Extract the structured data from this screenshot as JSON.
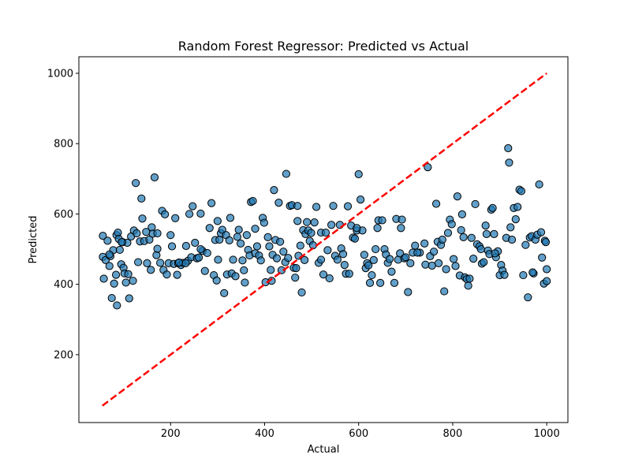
{
  "chart_data": {
    "type": "scatter",
    "title": "Random Forest Regressor: Predicted vs Actual",
    "xlabel": "Actual",
    "ylabel": "Predicted",
    "xlim": [
      5,
      1045
    ],
    "ylim": [
      7,
      1047
    ],
    "x_ticks": [
      200,
      400,
      600,
      800,
      1000
    ],
    "y_ticks": [
      200,
      400,
      600,
      800,
      1000
    ],
    "grid": false,
    "legend": "none",
    "marker_color": "#1f77b4",
    "marker_edge_color": "#000000",
    "marker_alpha": 0.7,
    "reference_line": {
      "x": [
        55,
        1000
      ],
      "y": [
        55,
        1000
      ],
      "color": "#ff0000",
      "style": "dashed"
    },
    "points": [
      [
        56,
        538
      ],
      [
        56,
        478
      ],
      [
        58,
        416
      ],
      [
        62,
        469
      ],
      [
        66,
        524
      ],
      [
        70,
        452
      ],
      [
        72,
        480
      ],
      [
        75,
        361
      ],
      [
        78,
        497
      ],
      [
        80,
        402
      ],
      [
        85,
        540
      ],
      [
        88,
        547
      ],
      [
        90,
        529
      ],
      [
        92,
        498
      ],
      [
        95,
        457
      ],
      [
        98,
        520
      ],
      [
        100,
        447
      ],
      [
        102,
        431
      ],
      [
        105,
        405
      ],
      [
        108,
        518
      ],
      [
        112,
        360
      ],
      [
        116,
        536
      ],
      [
        122,
        553
      ],
      [
        126,
        688
      ],
      [
        128,
        545
      ],
      [
        131,
        463
      ],
      [
        135,
        522
      ],
      [
        138,
        644
      ],
      [
        140,
        587
      ],
      [
        144,
        523
      ],
      [
        150,
        460
      ],
      [
        155,
        527
      ],
      [
        158,
        441
      ],
      [
        160,
        562
      ],
      [
        162,
        544
      ],
      [
        166,
        704
      ],
      [
        170,
        483
      ],
      [
        172,
        501
      ],
      [
        178,
        461
      ],
      [
        182,
        609
      ],
      [
        185,
        441
      ],
      [
        188,
        599
      ],
      [
        192,
        428
      ],
      [
        196,
        460
      ],
      [
        200,
        540
      ],
      [
        203,
        508
      ],
      [
        207,
        458
      ],
      [
        210,
        588
      ],
      [
        214,
        427
      ],
      [
        216,
        460
      ],
      [
        222,
        455
      ],
      [
        226,
        461
      ],
      [
        233,
        509
      ],
      [
        237,
        467
      ],
      [
        240,
        600
      ],
      [
        244,
        477
      ],
      [
        247,
        622
      ],
      [
        252,
        518
      ],
      [
        256,
        474
      ],
      [
        260,
        476
      ],
      [
        264,
        601
      ],
      [
        268,
        495
      ],
      [
        273,
        438
      ],
      [
        278,
        489
      ],
      [
        283,
        560
      ],
      [
        287,
        631
      ],
      [
        292,
        426
      ],
      [
        295,
        526
      ],
      [
        298,
        411
      ],
      [
        301,
        470
      ],
      [
        304,
        527
      ],
      [
        307,
        545
      ],
      [
        310,
        555
      ],
      [
        314,
        375
      ],
      [
        318,
        540
      ],
      [
        320,
        428
      ],
      [
        325,
        525
      ],
      [
        327,
        589
      ],
      [
        330,
        431
      ],
      [
        333,
        470
      ],
      [
        338,
        423
      ],
      [
        342,
        535
      ],
      [
        349,
        516
      ],
      [
        353,
        468
      ],
      [
        356,
        440
      ],
      [
        358,
        405
      ],
      [
        362,
        540
      ],
      [
        365,
        498
      ],
      [
        368,
        482
      ],
      [
        371,
        634
      ],
      [
        375,
        637
      ],
      [
        380,
        488
      ],
      [
        384,
        508
      ],
      [
        388,
        482
      ],
      [
        392,
        468
      ],
      [
        396,
        589
      ],
      [
        399,
        575
      ],
      [
        402,
        406
      ],
      [
        407,
        534
      ],
      [
        410,
        508
      ],
      [
        413,
        441
      ],
      [
        417,
        484
      ],
      [
        420,
        668
      ],
      [
        423,
        526
      ],
      [
        426,
        474
      ],
      [
        430,
        632
      ],
      [
        433,
        521
      ],
      [
        436,
        440
      ],
      [
        440,
        493
      ],
      [
        444,
        463
      ],
      [
        446,
        714
      ],
      [
        450,
        475
      ],
      [
        454,
        623
      ],
      [
        458,
        625
      ],
      [
        462,
        447
      ],
      [
        465,
        419
      ],
      [
        467,
        446
      ],
      [
        470,
        623
      ],
      [
        472,
        481
      ],
      [
        476,
        510
      ],
      [
        479,
        377
      ],
      [
        482,
        554
      ],
      [
        485,
        469
      ],
      [
        487,
        543
      ],
      [
        490,
        577
      ],
      [
        493,
        553
      ],
      [
        496,
        523
      ],
      [
        499,
        546
      ],
      [
        503,
        511
      ],
      [
        506,
        576
      ],
      [
        510,
        620
      ],
      [
        515,
        461
      ],
      [
        520,
        547
      ],
      [
        525,
        428
      ],
      [
        530,
        547
      ],
      [
        534,
        497
      ],
      [
        538,
        417
      ],
      [
        542,
        569
      ],
      [
        546,
        623
      ],
      [
        550,
        481
      ],
      [
        555,
        470
      ],
      [
        560,
        569
      ],
      [
        563,
        502
      ],
      [
        567,
        486
      ],
      [
        570,
        455
      ],
      [
        573,
        430
      ],
      [
        577,
        622
      ],
      [
        580,
        430
      ],
      [
        584,
        567
      ],
      [
        588,
        533
      ],
      [
        592,
        530
      ],
      [
        596,
        553
      ],
      [
        600,
        713
      ],
      [
        604,
        641
      ],
      [
        608,
        553
      ],
      [
        612,
        484
      ],
      [
        615,
        446
      ],
      [
        618,
        460
      ],
      [
        621,
        454
      ],
      [
        624,
        404
      ],
      [
        628,
        426
      ],
      [
        632,
        469
      ],
      [
        636,
        500
      ],
      [
        642,
        582
      ],
      [
        646,
        404
      ],
      [
        650,
        582
      ],
      [
        655,
        500
      ],
      [
        658,
        485
      ],
      [
        662,
        461
      ],
      [
        666,
        472
      ],
      [
        670,
        436
      ],
      [
        676,
        404
      ],
      [
        680,
        586
      ],
      [
        684,
        470
      ],
      [
        688,
        488
      ],
      [
        692,
        584
      ],
      [
        697,
        474
      ],
      [
        700,
        477
      ],
      [
        705,
        378
      ],
      [
        710,
        460
      ],
      [
        715,
        490
      ],
      [
        720,
        510
      ],
      [
        730,
        490
      ],
      [
        742,
        456
      ],
      [
        747,
        733
      ],
      [
        752,
        480
      ],
      [
        756,
        453
      ],
      [
        760,
        493
      ],
      [
        765,
        629
      ],
      [
        768,
        521
      ],
      [
        770,
        460
      ],
      [
        775,
        512
      ],
      [
        778,
        527
      ],
      [
        782,
        380
      ],
      [
        786,
        443
      ],
      [
        790,
        546
      ],
      [
        794,
        584
      ],
      [
        798,
        571
      ],
      [
        802,
        472
      ],
      [
        806,
        452
      ],
      [
        810,
        650
      ],
      [
        815,
        425
      ],
      [
        818,
        554
      ],
      [
        820,
        599
      ],
      [
        823,
        534
      ],
      [
        826,
        420
      ],
      [
        830,
        415
      ],
      [
        833,
        396
      ],
      [
        836,
        416
      ],
      [
        840,
        532
      ],
      [
        844,
        473
      ],
      [
        848,
        628
      ],
      [
        852,
        514
      ],
      [
        857,
        508
      ],
      [
        862,
        459
      ],
      [
        866,
        463
      ],
      [
        870,
        567
      ],
      [
        872,
        543
      ],
      [
        875,
        496
      ],
      [
        878,
        486
      ],
      [
        882,
        612
      ],
      [
        885,
        617
      ],
      [
        888,
        543
      ],
      [
        892,
        477
      ],
      [
        896,
        494
      ],
      [
        900,
        426
      ],
      [
        903,
        455
      ],
      [
        906,
        439
      ],
      [
        910,
        427
      ],
      [
        914,
        532
      ],
      [
        918,
        787
      ],
      [
        920,
        746
      ],
      [
        923,
        562
      ],
      [
        926,
        527
      ],
      [
        930,
        617
      ],
      [
        934,
        585
      ],
      [
        938,
        620
      ],
      [
        942,
        669
      ],
      [
        946,
        665
      ],
      [
        950,
        426
      ],
      [
        955,
        512
      ],
      [
        960,
        363
      ],
      [
        964,
        533
      ],
      [
        968,
        537
      ],
      [
        972,
        431
      ],
      [
        976,
        527
      ],
      [
        980,
        541
      ],
      [
        984,
        684
      ],
      [
        988,
        548
      ],
      [
        990,
        476
      ],
      [
        994,
        402
      ],
      [
        996,
        524
      ],
      [
        998,
        520
      ],
      [
        1000,
        443
      ],
      [
        1000,
        409
      ],
      [
        970,
        434
      ],
      [
        890,
        488
      ],
      [
        860,
        500
      ],
      [
        740,
        516
      ],
      [
        725,
        490
      ],
      [
        690,
        560
      ],
      [
        640,
        560
      ],
      [
        596,
        560
      ],
      [
        520,
        470
      ],
      [
        470,
        580
      ],
      [
        415,
        410
      ],
      [
        380,
        558
      ],
      [
        345,
        555
      ],
      [
        300,
        580
      ],
      [
        264,
        500
      ],
      [
        232,
        460
      ],
      [
        218,
        462
      ],
      [
        172,
        545
      ],
      [
        148,
        549
      ],
      [
        120,
        410
      ],
      [
        110,
        429
      ],
      [
        96,
        520
      ],
      [
        84,
        427
      ],
      [
        70,
        485
      ],
      [
        86,
        340
      ]
    ]
  }
}
